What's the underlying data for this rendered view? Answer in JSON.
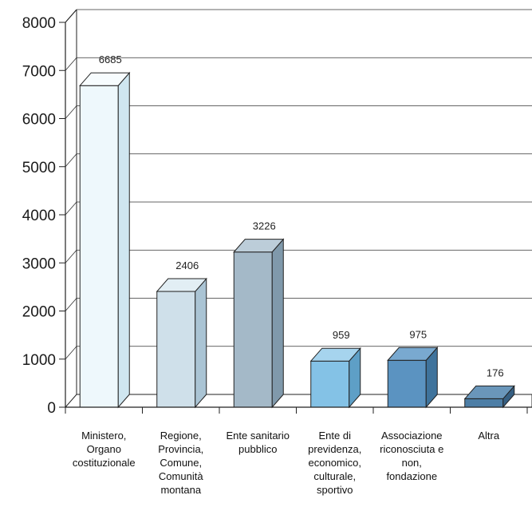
{
  "chart_data": {
    "type": "bar",
    "style": "3d",
    "categories": [
      [
        "Ministero,",
        "Organo",
        "costituzionale"
      ],
      [
        "Regione,",
        "Provincia,",
        "Comune,",
        "Comunità",
        "montana"
      ],
      [
        "Ente sanitario",
        "pubblico"
      ],
      [
        "Ente di",
        "previdenza,",
        "economico,",
        "culturale,",
        "sportivo"
      ],
      [
        "Associazione",
        "riconosciuta e",
        "non,",
        "fondazione"
      ],
      [
        "Altra"
      ]
    ],
    "values": [
      6685,
      2406,
      3226,
      959,
      975,
      176
    ],
    "data_labels": [
      "6685",
      "2406",
      "3226",
      "959",
      "975",
      "176"
    ],
    "bar_colors": [
      {
        "front": "#eef8fc",
        "side": "#cfe6f0",
        "top": "#f7fcfe"
      },
      {
        "front": "#cfe0ea",
        "side": "#aac4d4",
        "top": "#e2eef4"
      },
      {
        "front": "#a4b9c8",
        "side": "#8099ab",
        "top": "#bccdd9"
      },
      {
        "front": "#84c2e6",
        "side": "#5e9fc6",
        "top": "#a6d4ee"
      },
      {
        "front": "#5b93c1",
        "side": "#3f739c",
        "top": "#79a9d0"
      },
      {
        "front": "#4d7ea6",
        "side": "#365f82",
        "top": "#6a96ba"
      }
    ],
    "ylim": [
      0,
      8000
    ],
    "yticks": [
      "0",
      "1000",
      "2000",
      "3000",
      "4000",
      "5000",
      "6000",
      "7000",
      "8000"
    ],
    "grid": true,
    "title": "",
    "xlabel": "",
    "ylabel": ""
  }
}
